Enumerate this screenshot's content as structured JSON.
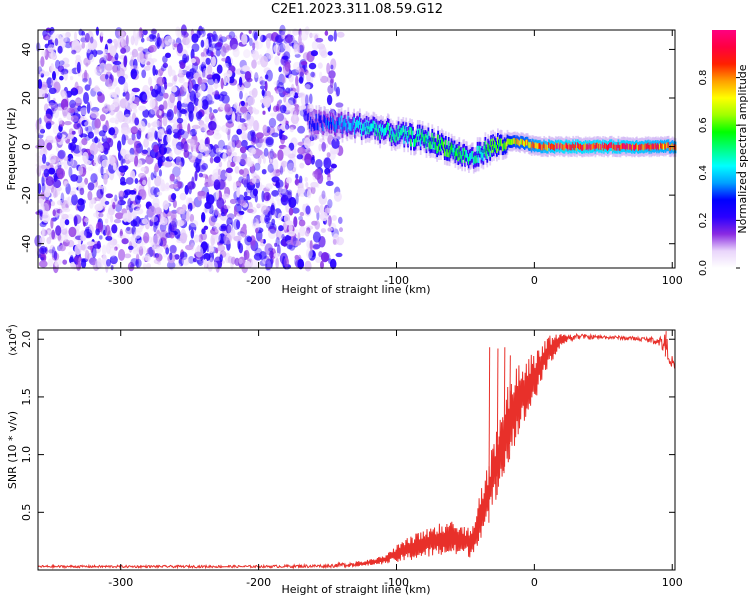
{
  "title": "C2E1.2023.311.08.59.G12",
  "chart_data": [
    {
      "type": "heatmap",
      "xlabel": "Height of straight line (km)",
      "ylabel": "Frequency (Hz)",
      "xlim": [
        -360,
        102
      ],
      "ylim": [
        -50,
        48
      ],
      "xticks": [
        -300,
        -200,
        -100,
        0,
        100
      ],
      "yticks": [
        -40,
        -20,
        0,
        20,
        40
      ],
      "colorbar": {
        "label": "Normalized spectral amplitude",
        "range": [
          0,
          1
        ],
        "ticks": [
          0.0,
          0.2,
          0.4,
          0.6,
          0.8
        ],
        "colors": [
          "#ffffff",
          "#e9d5fb",
          "#8a2be2",
          "#2a00ff",
          "#0000ff",
          "#00a0ff",
          "#00ffff",
          "#00ff80",
          "#00ff00",
          "#a0ff00",
          "#ffff00",
          "#ffa000",
          "#ff2000",
          "#ff0040",
          "#ff0080"
        ]
      },
      "noise_region": {
        "x": [
          -360,
          -140
        ],
        "amplitude": [
          0.05,
          0.25
        ]
      },
      "signal_ridge": {
        "x": [
          -165,
          -140,
          -120,
          -100,
          -80,
          -65,
          -55,
          -45,
          -35,
          -25,
          -15,
          -5,
          0,
          20,
          50,
          80,
          102
        ],
        "frequency": [
          10,
          9,
          8,
          5,
          3,
          0,
          -3,
          -5,
          -1,
          1,
          2,
          1,
          0,
          0,
          0,
          0,
          0
        ],
        "amplitude": [
          0.25,
          0.35,
          0.45,
          0.45,
          0.5,
          0.55,
          0.5,
          0.45,
          0.5,
          0.6,
          0.7,
          0.75,
          0.8,
          0.9,
          0.9,
          0.85,
          0.8
        ]
      },
      "grid": false,
      "legend": "colorbar-right"
    },
    {
      "type": "line",
      "xlabel": "Height of straight line (km)",
      "ylabel": "SNR (10 * v/v)",
      "multiplier_label": "(x10",
      "multiplier_exp": "4",
      "multiplier_close": ")",
      "xlim": [
        -360,
        102
      ],
      "ylim": [
        0,
        2.08
      ],
      "xticks": [
        -300,
        -200,
        -100,
        0,
        100
      ],
      "yticks": [
        0.5,
        1.0,
        1.5,
        2.0
      ],
      "ytick_labels": [
        "0.5",
        "1.0",
        "1.5",
        "2.0"
      ],
      "color": "#e8302a",
      "envelope": {
        "x": [
          -360,
          -200,
          -150,
          -125,
          -110,
          -100,
          -90,
          -80,
          -70,
          -60,
          -50,
          -45,
          -40,
          -35,
          -30,
          -25,
          -20,
          -15,
          -10,
          -5,
          0,
          5,
          10,
          20,
          30,
          40,
          60,
          80,
          90,
          95,
          100,
          102
        ],
        "low": [
          0.02,
          0.02,
          0.02,
          0.03,
          0.05,
          0.06,
          0.08,
          0.1,
          0.12,
          0.12,
          0.12,
          0.1,
          0.25,
          0.35,
          0.5,
          0.75,
          0.9,
          1.05,
          1.2,
          1.3,
          1.45,
          1.6,
          1.75,
          1.95,
          2.0,
          2.0,
          2.0,
          1.98,
          1.95,
          1.85,
          1.75,
          1.72
        ],
        "high": [
          0.04,
          0.04,
          0.05,
          0.08,
          0.12,
          0.22,
          0.3,
          0.36,
          0.4,
          0.42,
          0.38,
          0.4,
          0.65,
          0.85,
          1.1,
          1.4,
          1.6,
          1.72,
          1.8,
          1.85,
          1.9,
          1.97,
          2.03,
          2.05,
          2.05,
          2.04,
          2.03,
          2.02,
          2.02,
          2.06,
          1.85,
          1.8
        ]
      },
      "spikes": [
        {
          "x": -33,
          "y": 1.93
        },
        {
          "x": -27,
          "y": 1.92
        },
        {
          "x": -22,
          "y": 1.93
        },
        {
          "x": -18,
          "y": 1.86
        },
        {
          "x": 95,
          "y": 2.07
        }
      ],
      "grid": false
    }
  ]
}
